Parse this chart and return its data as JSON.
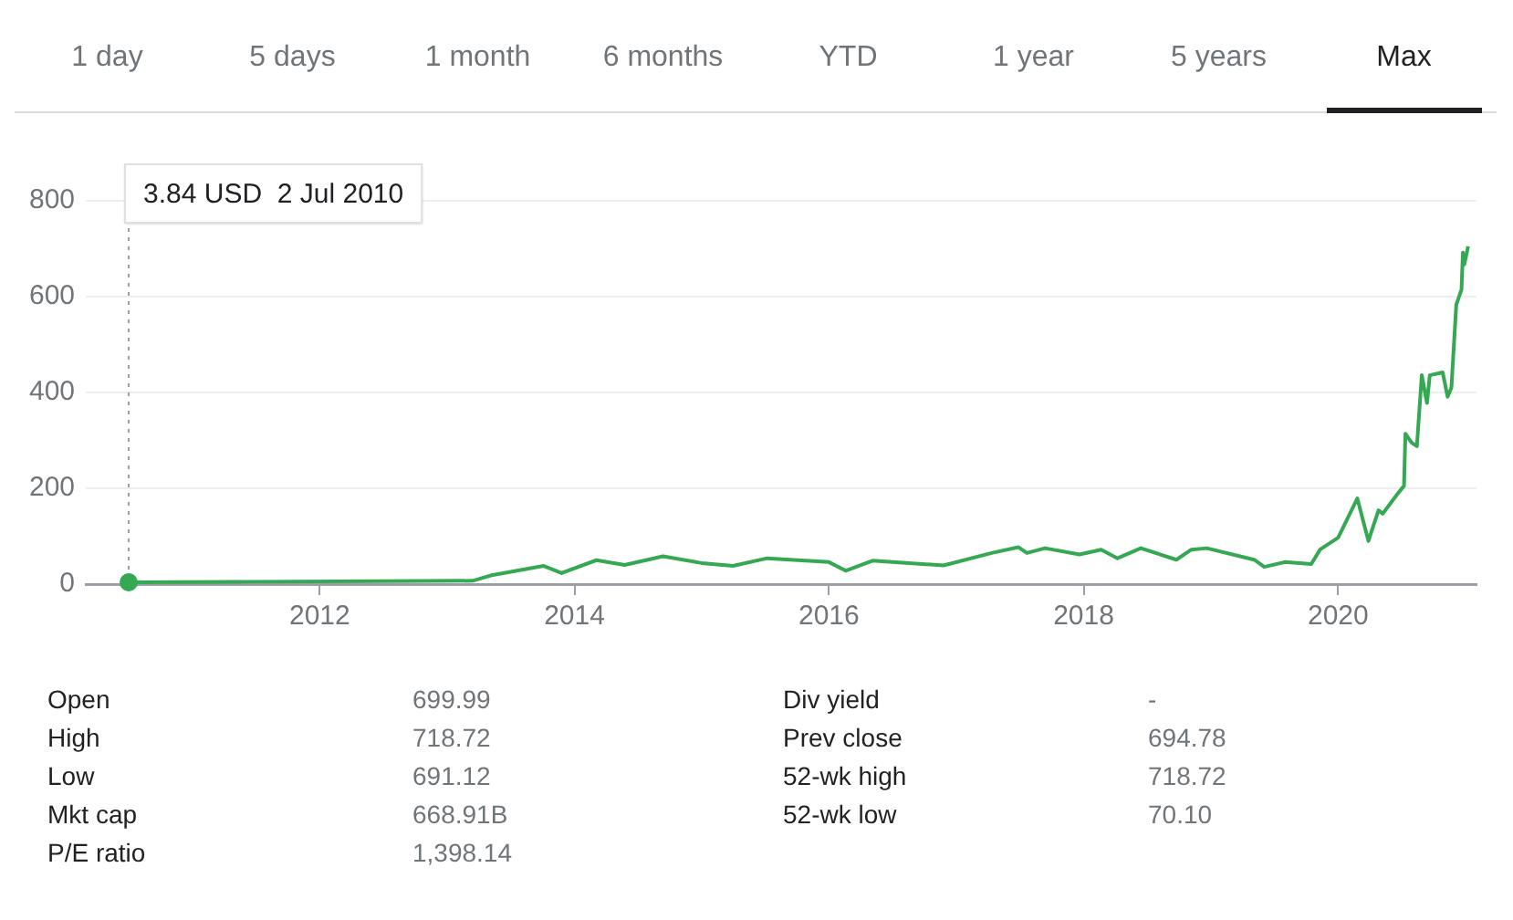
{
  "chart_data": {
    "type": "line",
    "annotations": [
      "1 day",
      "5 days",
      "1 month",
      "6 months",
      "YTD",
      "1 year",
      "5 years",
      "Max",
      "Open",
      "699.99",
      "High",
      "718.72",
      "Low",
      "691.12",
      "Mkt cap",
      "668.91B",
      "P/E ratio",
      "1,398.14",
      "Div yield",
      "-",
      "Prev close",
      "694.78",
      "52-wk high",
      "718.72",
      "52-wk low",
      "70.10",
      "3.84 USD  2 Jul 2010"
    ],
    "ref_lines": [
      {
        "axis": "x",
        "value": "2010-07-02",
        "color": "#9aa0a6",
        "line_style": "dotted"
      }
    ],
    "series": [
      {
        "color": "#34a853",
        "x": [
          "2010-07-02",
          "2011-07-01",
          "2012-07-01",
          "2013-03-15",
          "2013-05-05",
          "2013-07-20",
          "2013-10-05",
          "2013-11-25",
          "2014-03-05",
          "2014-05-25",
          "2014-09-12",
          "2015-01-01",
          "2015-04-01",
          "2015-07-08",
          "2016-01-01",
          "2016-02-18",
          "2016-05-05",
          "2016-11-25",
          "2017-04-12",
          "2017-06-28",
          "2017-07-22",
          "2017-09-12",
          "2017-12-20",
          "2018-02-20",
          "2018-04-08",
          "2018-06-14",
          "2018-09-24",
          "2018-11-06",
          "2018-12-20",
          "2019-05-05",
          "2019-06-03",
          "2019-08-01",
          "2019-10-16",
          "2019-11-10",
          "2020-01-01",
          "2020-02-25",
          "2020-03-28",
          "2020-04-08",
          "2020-04-26",
          "2020-05-08",
          "2020-06-17",
          "2020-07-08",
          "2020-07-12",
          "2020-07-30",
          "2020-08-14",
          "2020-08-28",
          "2020-09-12",
          "2020-09-20",
          "2020-10-27",
          "2020-11-10",
          "2020-11-21",
          "2020-12-05",
          "2020-12-20",
          "2020-12-24",
          "2020-12-28",
          "2021-01-08"
        ],
        "values": [
          3.84,
          5,
          6,
          7,
          18,
          28,
          38,
          23,
          50,
          40,
          58,
          44,
          38,
          54,
          46,
          28,
          49,
          39,
          65,
          77,
          65,
          75,
          62,
          72,
          54,
          75,
          51,
          72,
          75,
          51,
          36,
          46,
          42,
          72,
          97,
          179,
          90,
          115,
          154,
          147,
          186,
          205,
          314,
          295,
          288,
          436,
          378,
          436,
          442,
          391,
          410,
          583,
          615,
          692,
          667,
          705
        ]
      }
    ],
    "xlim": [
      "2010-03-01",
      "2021-02-01"
    ],
    "xticks": [
      "2012",
      "2014",
      "2016",
      "2018",
      "2020"
    ],
    "ylim": [
      0,
      800
    ],
    "yticks": [
      0,
      200,
      400,
      600,
      800
    ],
    "grid": "y",
    "legend": false,
    "marker": "none",
    "line_style": "solid"
  }
}
